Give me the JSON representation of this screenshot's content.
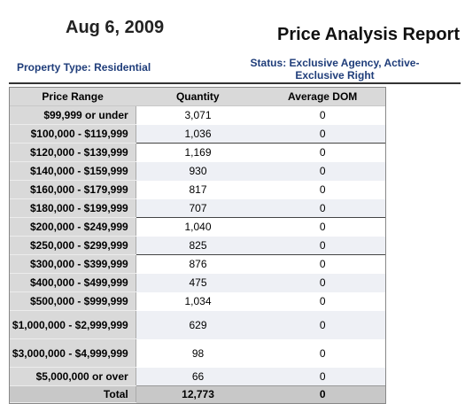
{
  "header": {
    "date": "Aug 6, 2009",
    "title": "Price Analysis Report",
    "property_type": "Property Type: Residential",
    "status": "Status: Exclusive Agency, Active-Exclusive Right"
  },
  "table": {
    "columns": [
      "Price Range",
      "Quantity",
      "Average DOM"
    ],
    "rows": [
      {
        "range": "$99,999 or under",
        "quantity": "3,071",
        "dom": "0"
      },
      {
        "range": "$100,000 - $119,999",
        "quantity": "1,036",
        "dom": "0"
      },
      {
        "range": "$120,000 - $139,999",
        "quantity": "1,169",
        "dom": "0"
      },
      {
        "range": "$140,000 - $159,999",
        "quantity": "930",
        "dom": "0"
      },
      {
        "range": "$160,000 - $179,999",
        "quantity": "817",
        "dom": "0"
      },
      {
        "range": "$180,000 - $199,999",
        "quantity": "707",
        "dom": "0"
      },
      {
        "range": "$200,000 - $249,999",
        "quantity": "1,040",
        "dom": "0"
      },
      {
        "range": "$250,000 - $299,999",
        "quantity": "825",
        "dom": "0"
      },
      {
        "range": "$300,000 - $399,999",
        "quantity": "876",
        "dom": "0"
      },
      {
        "range": "$400,000 - $499,999",
        "quantity": "475",
        "dom": "0"
      },
      {
        "range": "$500,000 - $999,999",
        "quantity": "1,034",
        "dom": "0"
      },
      {
        "range": "$1,000,000 - $2,999,999",
        "quantity": "629",
        "dom": "0"
      },
      {
        "range": "$3,000,000 - $4,999,999",
        "quantity": "98",
        "dom": "0"
      },
      {
        "range": "$5,000,000 or over",
        "quantity": "66",
        "dom": "0"
      }
    ],
    "total": {
      "label": "Total",
      "quantity": "12,773",
      "dom": "0"
    }
  }
}
